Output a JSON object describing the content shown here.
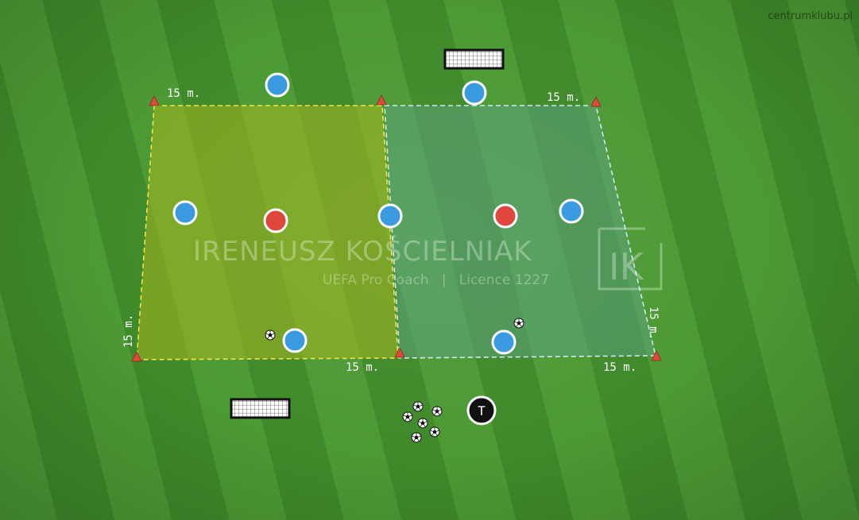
{
  "site_label": "centrumklubu.pl",
  "watermark": {
    "name": "IRENEUSZ KOŚCIELNIAK",
    "subtitle": "UEFA Pro Coach   |   Licence 1227",
    "logo_text": "IK"
  },
  "distances": {
    "top_left": "15 m.",
    "top_right": "15 m.",
    "bottom_middle": "15 m.",
    "bottom_right": "15 m.",
    "left_side": "15 m.",
    "right_side": "15 m."
  },
  "coach_label": "T",
  "colors": {
    "zone_left_border": "#f2e24a",
    "zone_right_border": "#cfe8f2",
    "player_blue": "#3a9be0",
    "player_red": "#e0473c",
    "cone": "#e0483c",
    "coach": "#111111"
  }
}
